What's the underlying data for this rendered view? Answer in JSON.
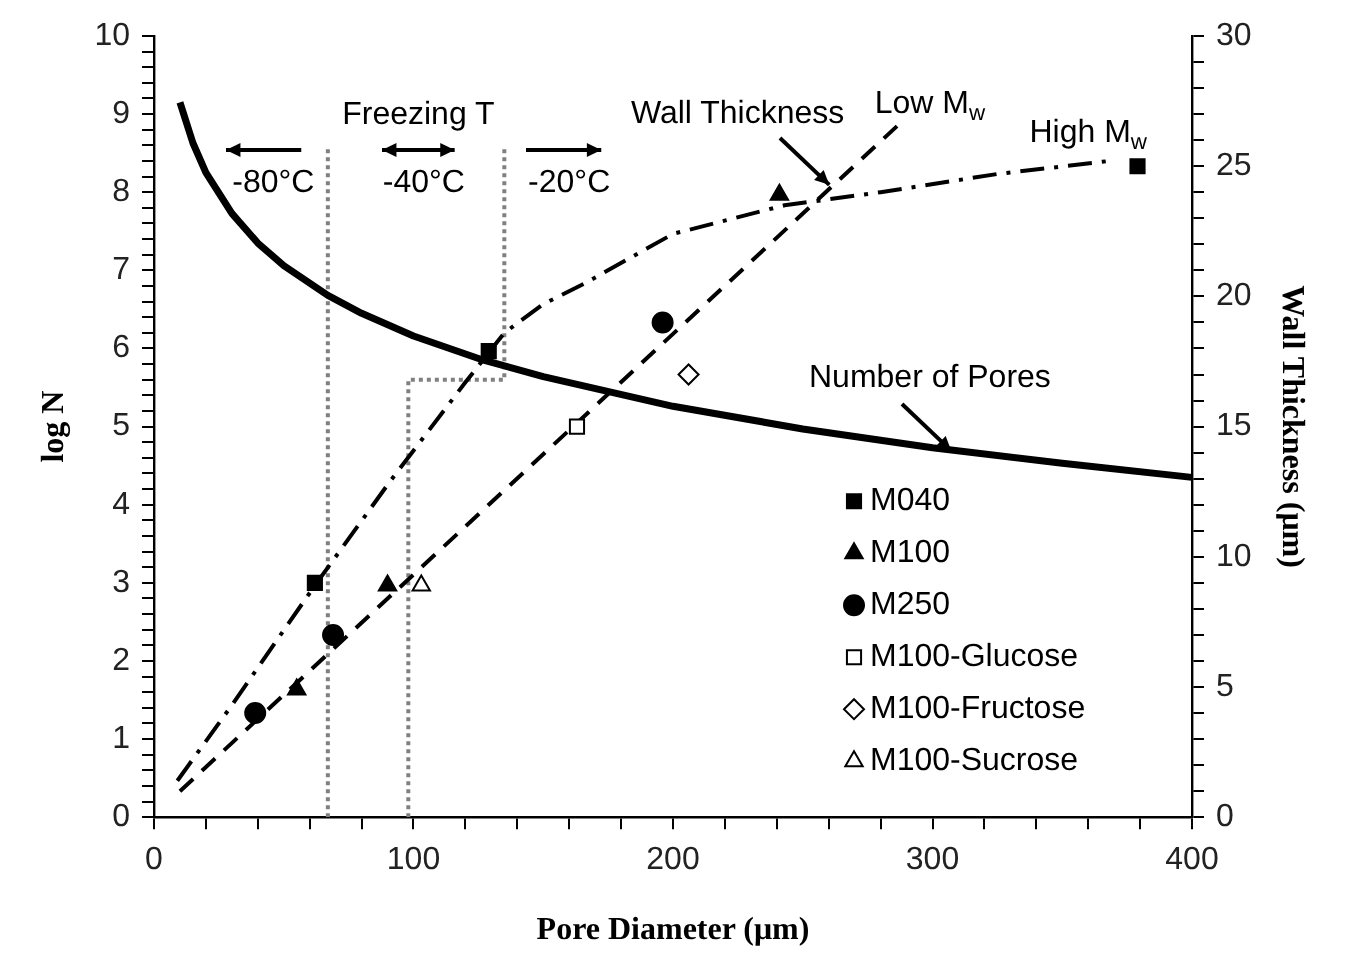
{
  "chart_data": {
    "type": "line",
    "xlabel": "Pore Diameter (μm)",
    "ylabel": "log N",
    "y2label": "Wall Thickness (μm)",
    "xlim": [
      0,
      400
    ],
    "ylim": [
      0,
      10
    ],
    "y2lim": [
      0,
      30
    ],
    "xticks": [
      0,
      {
        "value": 20,
        "label": null
      },
      {
        "value": 40,
        "label": null
      },
      {
        "value": 60,
        "label": null
      },
      {
        "value": 80,
        "label": null
      },
      100,
      {
        "value": 120,
        "label": null
      },
      {
        "value": 140,
        "label": null
      },
      {
        "value": 160,
        "label": null
      },
      {
        "value": 180,
        "label": null
      },
      200,
      {
        "value": 220,
        "label": null
      },
      {
        "value": 240,
        "label": null
      },
      {
        "value": 260,
        "label": null
      },
      {
        "value": 280,
        "label": null
      },
      300,
      {
        "value": 320,
        "label": null
      },
      {
        "value": 340,
        "label": null
      },
      {
        "value": 360,
        "label": null
      },
      {
        "value": 380,
        "label": null
      },
      400
    ],
    "yticks": [
      0,
      {
        "value": 0.2,
        "label": null
      },
      {
        "value": 0.4,
        "label": null
      },
      {
        "value": 0.6,
        "label": null
      },
      {
        "value": 0.8,
        "label": null
      },
      1,
      {
        "value": 1.2,
        "label": null
      },
      {
        "value": 1.4,
        "label": null
      },
      {
        "value": 1.6,
        "label": null
      },
      {
        "value": 1.8,
        "label": null
      },
      2,
      {
        "value": 2.2,
        "label": null
      },
      {
        "value": 2.4,
        "label": null
      },
      {
        "value": 2.6,
        "label": null
      },
      {
        "value": 2.8,
        "label": null
      },
      3,
      {
        "value": 3.2,
        "label": null
      },
      {
        "value": 3.4,
        "label": null
      },
      {
        "value": 3.6,
        "label": null
      },
      {
        "value": 3.8,
        "label": null
      },
      4,
      {
        "value": 4.2,
        "label": null
      },
      {
        "value": 4.4,
        "label": null
      },
      {
        "value": 4.6,
        "label": null
      },
      {
        "value": 4.8,
        "label": null
      },
      5,
      {
        "value": 5.2,
        "label": null
      },
      {
        "value": 5.4,
        "label": null
      },
      {
        "value": 5.6,
        "label": null
      },
      {
        "value": 5.8,
        "label": null
      },
      6,
      {
        "value": 6.2,
        "label": null
      },
      {
        "value": 6.4,
        "label": null
      },
      {
        "value": 6.6,
        "label": null
      },
      {
        "value": 6.8,
        "label": null
      },
      7,
      {
        "value": 7.2,
        "label": null
      },
      {
        "value": 7.4,
        "label": null
      },
      {
        "value": 7.6,
        "label": null
      },
      {
        "value": 7.8,
        "label": null
      },
      8,
      {
        "value": 8.2,
        "label": null
      },
      {
        "value": 8.4,
        "label": null
      },
      {
        "value": 8.6,
        "label": null
      },
      {
        "value": 8.8,
        "label": null
      },
      9,
      {
        "value": 9.2,
        "label": null
      },
      {
        "value": 9.4,
        "label": null
      },
      {
        "value": 9.6,
        "label": null
      },
      {
        "value": 9.8,
        "label": null
      },
      10
    ],
    "y2ticks": [
      0,
      {
        "value": 1,
        "label": null
      },
      {
        "value": 2,
        "label": null
      },
      {
        "value": 3,
        "label": null
      },
      {
        "value": 4,
        "label": null
      },
      5,
      {
        "value": 6,
        "label": null
      },
      {
        "value": 7,
        "label": null
      },
      {
        "value": 8,
        "label": null
      },
      {
        "value": 9,
        "label": null
      },
      10,
      {
        "value": 11,
        "label": null
      },
      {
        "value": 12,
        "label": null
      },
      {
        "value": 13,
        "label": null
      },
      {
        "value": 14,
        "label": null
      },
      15,
      {
        "value": 16,
        "label": null
      },
      {
        "value": 17,
        "label": null
      },
      {
        "value": 18,
        "label": null
      },
      {
        "value": 19,
        "label": null
      },
      20,
      {
        "value": 21,
        "label": null
      },
      {
        "value": 22,
        "label": null
      },
      {
        "value": 23,
        "label": null
      },
      {
        "value": 24,
        "label": null
      },
      25,
      {
        "value": 26,
        "label": null
      },
      {
        "value": 27,
        "label": null
      },
      {
        "value": 28,
        "label": null
      },
      {
        "value": 29,
        "label": null
      },
      30
    ],
    "grid": false,
    "legend": "bottom right",
    "series": [
      {
        "type": "line",
        "color": "#000000",
        "line_style": "solid",
        "marker": "none",
        "x": [
          10,
          15,
          20,
          30,
          40,
          50,
          67,
          80,
          100,
          127,
          150,
          200,
          250,
          300,
          350,
          400
        ],
        "values": [
          9.15,
          8.63,
          8.25,
          7.73,
          7.35,
          7.06,
          6.68,
          6.45,
          6.16,
          5.85,
          5.64,
          5.26,
          4.97,
          4.73,
          4.53,
          4.35
        ]
      },
      {
        "type": "line",
        "color": "#000000",
        "line_style": "dashed",
        "marker": "none",
        "axis": "y2",
        "x": [
          10,
          287
        ],
        "values": [
          1.0,
          26.6
        ]
      },
      {
        "type": "line",
        "color": "#000000",
        "line_style": "dashdot",
        "marker": "none",
        "axis": "y2",
        "x": [
          9,
          30,
          62,
          91,
          120,
          135,
          150,
          166,
          200,
          243,
          280,
          325,
          368
        ],
        "values": [
          1.4,
          4.3,
          8.9,
          12.9,
          16.7,
          18.6,
          19.7,
          20.5,
          22.4,
          23.5,
          24.0,
          24.7,
          25.2
        ]
      },
      {
        "type": "line",
        "color": "#808080",
        "line_style": "dotted",
        "marker": "none",
        "x": [
          67,
          67
        ],
        "values": [
          0,
          8.55
        ]
      },
      {
        "type": "line",
        "color": "#808080",
        "line_style": "dotted",
        "marker": "none",
        "x": [
          98,
          98,
          135,
          135
        ],
        "values": [
          0,
          5.6,
          5.6,
          8.55
        ]
      },
      {
        "type": "scatter",
        "name": "M040",
        "color": "#000000",
        "marker": "square",
        "axis": "y2",
        "x": [
          62,
          129,
          379
        ],
        "values": [
          9.0,
          17.9,
          25.0
        ]
      },
      {
        "type": "scatter",
        "name": "M100",
        "color": "#000000",
        "marker": "triangle",
        "axis": "y2",
        "x": [
          55,
          90,
          241
        ],
        "values": [
          4.9,
          8.9,
          23.9
        ]
      },
      {
        "type": "scatter",
        "name": "M250",
        "color": "#000000",
        "marker": "circle",
        "axis": "y2",
        "x": [
          39,
          69,
          196
        ],
        "values": [
          4.0,
          7.0,
          19.0
        ]
      },
      {
        "type": "scatter",
        "name": "M100-Glucose",
        "color": "#ffffff",
        "marker": "square",
        "axis": "y2",
        "x": [
          163
        ],
        "values": [
          15.0
        ]
      },
      {
        "type": "scatter",
        "name": "M100-Fructose",
        "color": "#ffffff",
        "marker": "diamond",
        "axis": "y2",
        "x": [
          206
        ],
        "values": [
          17.0
        ]
      },
      {
        "type": "scatter",
        "name": "M100-Sucrose",
        "color": "#ffffff",
        "marker": "triangle",
        "axis": "y2",
        "x": [
          103
        ],
        "values": [
          8.9
        ]
      }
    ],
    "annotations": [
      "Freezing T",
      "-80°C",
      "-40°C",
      "-20°C",
      {
        "text": "Wall Thickness",
        "x": 260,
        "y": 8.1
      },
      "Low M$_{w}$",
      "High M$_{w}$",
      {
        "text": "Number of Pores",
        "x": 307,
        "y": 4.7
      }
    ]
  }
}
